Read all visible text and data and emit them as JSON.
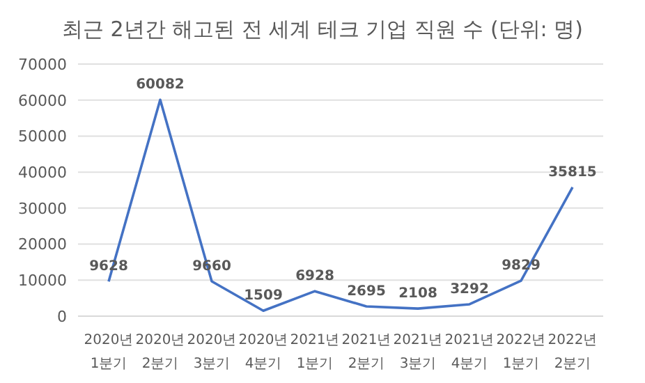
{
  "chart_data": {
    "type": "line",
    "title": "최근 2년간 해고된 전 세계 테크 기업 직원 수 (단위: 명)",
    "categories": [
      "2020년 1분기",
      "2020년 2분기",
      "2020년 3분기",
      "2020년 4분기",
      "2021년 1분기",
      "2021년 2분기",
      "2021년 3분기",
      "2021년 4분기",
      "2022년 1분기",
      "2022년 2분기"
    ],
    "series": [
      {
        "color": "#4472c4",
        "values": [
          9628,
          60082,
          9660,
          1509,
          6928,
          2695,
          2108,
          3292,
          9829,
          35815
        ]
      }
    ],
    "ylim": [
      0,
      70000
    ],
    "yticks": [
      0,
      10000,
      20000,
      30000,
      40000,
      50000,
      60000,
      70000
    ],
    "grid": "y",
    "data_labels": true,
    "marker": "none",
    "line_style": "solid",
    "legend": false
  }
}
